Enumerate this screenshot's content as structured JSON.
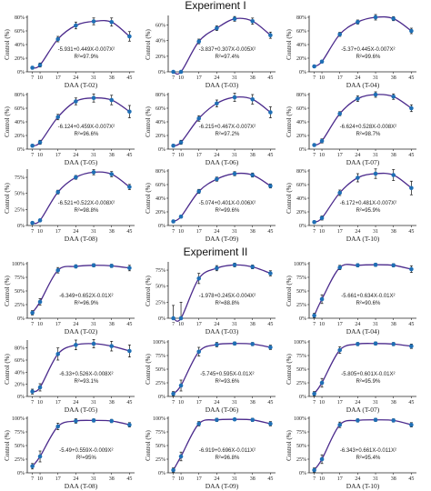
{
  "colors": {
    "fit_line": "#4b2a8c",
    "marker": "#1f6fb5",
    "error_bar": "#111111"
  },
  "experiments": [
    {
      "title": "Experiment I",
      "panels": [
        {
          "xlabel": "DAA (T-02)",
          "equation": "-5.931+0.449X-0.007X²",
          "r2": "R²=97.9%",
          "yticks": [
            "0%",
            "20%",
            "40%",
            "60%",
            "80%"
          ],
          "ylim": [
            0,
            80
          ],
          "x": [
            7,
            10,
            17,
            24,
            31,
            38,
            45
          ],
          "y": [
            6,
            10,
            48,
            68,
            74,
            73,
            52
          ],
          "err": [
            2,
            3,
            4,
            5,
            5,
            6,
            7
          ]
        },
        {
          "xlabel": "DAA (T-03)",
          "equation": "-3.837+0.307X-0.005X²",
          "r2": "R²=97.4%",
          "yticks": [
            "0%",
            "20%",
            "40%",
            "60%"
          ],
          "ylim": [
            0,
            70
          ],
          "x": [
            7,
            10,
            17,
            24,
            31,
            38,
            45
          ],
          "y": [
            0,
            0,
            39,
            56,
            68,
            65,
            47
          ],
          "err": [
            1,
            1,
            3,
            3,
            3,
            4,
            4
          ]
        },
        {
          "xlabel": "DAA (T-04)",
          "equation": "-5.37+0.445X-0.007X²",
          "r2": "R²=99.6%",
          "yticks": [
            "0%",
            "20%",
            "40%",
            "60%",
            "80%"
          ],
          "ylim": [
            0,
            80
          ],
          "x": [
            7,
            10,
            17,
            24,
            31,
            38,
            45
          ],
          "y": [
            8,
            15,
            55,
            73,
            80,
            78,
            60
          ],
          "err": [
            2,
            2,
            3,
            3,
            4,
            3,
            4
          ]
        },
        {
          "xlabel": "DAA (T-05)",
          "equation": "-6.124+0.459X-0.007X²",
          "r2": "R²=96.6%",
          "yticks": [
            "0%",
            "20%",
            "40%",
            "60%",
            "80%"
          ],
          "ylim": [
            0,
            80
          ],
          "x": [
            7,
            10,
            17,
            24,
            31,
            38,
            45
          ],
          "y": [
            5,
            10,
            47,
            70,
            75,
            72,
            55
          ],
          "err": [
            2,
            3,
            4,
            5,
            6,
            7,
            9
          ]
        },
        {
          "xlabel": "DAA (T-06)",
          "equation": "-6.215+0.467X-0.007X²",
          "r2": "R²=97.2%",
          "yticks": [
            "0%",
            "20%",
            "40%",
            "60%",
            "80%"
          ],
          "ylim": [
            0,
            80
          ],
          "x": [
            7,
            10,
            17,
            24,
            31,
            38,
            45
          ],
          "y": [
            5,
            10,
            45,
            67,
            76,
            73,
            54
          ],
          "err": [
            2,
            3,
            4,
            5,
            6,
            7,
            8
          ]
        },
        {
          "xlabel": "DAA (T-07)",
          "equation": "-6.624+0.528X-0.008X²",
          "r2": "R²=98.7%",
          "yticks": [
            "0%",
            "20%",
            "40%",
            "60%",
            "80%"
          ],
          "ylim": [
            0,
            80
          ],
          "x": [
            7,
            10,
            17,
            24,
            31,
            38,
            45
          ],
          "y": [
            6,
            12,
            52,
            74,
            80,
            77,
            60
          ],
          "err": [
            2,
            3,
            3,
            4,
            4,
            4,
            5
          ]
        },
        {
          "xlabel": "DAA (T-08)",
          "equation": "-6.521+0.522X-0.008X²",
          "r2": "R²=98.8%",
          "yticks": [
            "0%",
            "25%",
            "50%",
            "75%"
          ],
          "ylim": [
            0,
            85
          ],
          "x": [
            7,
            10,
            17,
            24,
            31,
            38,
            45
          ],
          "y": [
            4,
            8,
            52,
            75,
            83,
            80,
            60
          ],
          "err": [
            2,
            2,
            3,
            3,
            4,
            4,
            4
          ]
        },
        {
          "xlabel": "DAA (T-09)",
          "equation": "-5.074+0.401X-0.006X²",
          "r2": "R²=99.6%",
          "yticks": [
            "0%",
            "20%",
            "40%",
            "60%",
            "80%"
          ],
          "ylim": [
            0,
            80
          ],
          "x": [
            7,
            10,
            17,
            24,
            31,
            38,
            45
          ],
          "y": [
            6,
            13,
            50,
            68,
            76,
            74,
            58
          ],
          "err": [
            2,
            2,
            3,
            3,
            3,
            3,
            3
          ]
        },
        {
          "xlabel": "DAA (T-10)",
          "equation": "-6.172+0.481X-0.007X²",
          "r2": "R²=95.9%",
          "yticks": [
            "0%",
            "20%",
            "40%",
            "60%",
            "80%"
          ],
          "ylim": [
            0,
            80
          ],
          "x": [
            7,
            10,
            17,
            24,
            31,
            38,
            45
          ],
          "y": [
            5,
            11,
            48,
            70,
            76,
            74,
            55
          ],
          "err": [
            2,
            3,
            4,
            6,
            7,
            8,
            10
          ]
        }
      ]
    },
    {
      "title": "Experiment II",
      "panels": [
        {
          "xlabel": "DAA (T-02)",
          "equation": "-6.349+0.652X-0.01X²",
          "r2": "R²=96.9%",
          "yticks": [
            "0%",
            "25%",
            "50%",
            "75%",
            "100%"
          ],
          "ylim": [
            0,
            100
          ],
          "x": [
            7,
            10,
            17,
            24,
            31,
            38,
            45
          ],
          "y": [
            10,
            30,
            88,
            95,
            97,
            96,
            92
          ],
          "err": [
            4,
            6,
            5,
            3,
            3,
            3,
            5
          ]
        },
        {
          "xlabel": "DAA (T-03)",
          "equation": "-1.978+0.245X-0.004X²",
          "r2": "R²=88.8%",
          "yticks": [
            "0%",
            "25%",
            "50%",
            "75%"
          ],
          "ylim": [
            0,
            85
          ],
          "x": [
            7,
            10,
            17,
            24,
            31,
            38,
            45
          ],
          "y": [
            0,
            0,
            62,
            78,
            83,
            80,
            70
          ],
          "err": [
            20,
            25,
            8,
            4,
            3,
            3,
            4
          ]
        },
        {
          "xlabel": "DAA (T-04)",
          "equation": "-5.661+0.634X-0.01X²",
          "r2": "R²=90.6%",
          "yticks": [
            "0%",
            "25%",
            "50%",
            "75%",
            "100%"
          ],
          "ylim": [
            0,
            100
          ],
          "x": [
            7,
            10,
            17,
            24,
            31,
            38,
            45
          ],
          "y": [
            5,
            35,
            93,
            97,
            98,
            97,
            90
          ],
          "err": [
            4,
            8,
            4,
            3,
            3,
            3,
            6
          ]
        },
        {
          "xlabel": "DAA (T-05)",
          "equation": "-6.33+0.526X-0.008X²",
          "r2": "R²=93.1%",
          "yticks": [
            "0%",
            "20%",
            "40%",
            "60%",
            "80%"
          ],
          "ylim": [
            0,
            90
          ],
          "x": [
            7,
            10,
            17,
            24,
            31,
            38,
            45
          ],
          "y": [
            8,
            15,
            70,
            85,
            87,
            83,
            75
          ],
          "err": [
            4,
            6,
            10,
            8,
            7,
            8,
            10
          ]
        },
        {
          "xlabel": "DAA (T-06)",
          "equation": "-5.745+0.595X-0.01X²",
          "r2": "R²=93.6%",
          "yticks": [
            "0%",
            "25%",
            "50%",
            "75%",
            "100%"
          ],
          "ylim": [
            0,
            100
          ],
          "x": [
            7,
            10,
            17,
            24,
            31,
            38,
            45
          ],
          "y": [
            5,
            20,
            82,
            95,
            97,
            96,
            90
          ],
          "err": [
            4,
            10,
            8,
            4,
            3,
            3,
            4
          ]
        },
        {
          "xlabel": "DAA (T-07)",
          "equation": "-5.805+0.601X-0.01X²",
          "r2": "R²=95.9%",
          "yticks": [
            "0%",
            "25%",
            "50%",
            "75%",
            "100%"
          ],
          "ylim": [
            0,
            100
          ],
          "x": [
            7,
            10,
            17,
            24,
            31,
            38,
            45
          ],
          "y": [
            5,
            25,
            85,
            96,
            97,
            96,
            92
          ],
          "err": [
            4,
            8,
            6,
            3,
            3,
            3,
            4
          ]
        },
        {
          "xlabel": "DAA (T-08)",
          "equation": "-5.49+0.559X-0.009X²",
          "r2": "R²=95%",
          "yticks": [
            "0%",
            "25%",
            "50%",
            "75%",
            "100%"
          ],
          "ylim": [
            0,
            100
          ],
          "x": [
            7,
            10,
            17,
            24,
            31,
            38,
            45
          ],
          "y": [
            12,
            30,
            85,
            95,
            96,
            95,
            88
          ],
          "err": [
            5,
            10,
            6,
            4,
            3,
            3,
            4
          ]
        },
        {
          "xlabel": "DAA (T-09)",
          "equation": "-6.919+0.696X-0.011X²",
          "r2": "R²=96.8%",
          "yticks": [
            "0%",
            "25%",
            "50%",
            "75%",
            "100%"
          ],
          "ylim": [
            0,
            100
          ],
          "x": [
            7,
            10,
            17,
            24,
            31,
            38,
            45
          ],
          "y": [
            5,
            30,
            90,
            97,
            98,
            97,
            90
          ],
          "err": [
            4,
            8,
            4,
            3,
            2,
            3,
            4
          ]
        },
        {
          "xlabel": "DAA (T-10)",
          "equation": "-6.343+0.661X-0.011X²",
          "r2": "R²=95.4%",
          "yticks": [
            "0%",
            "25%",
            "50%",
            "75%",
            "100%"
          ],
          "ylim": [
            0,
            100
          ],
          "x": [
            7,
            10,
            17,
            24,
            31,
            38,
            45
          ],
          "y": [
            5,
            25,
            88,
            96,
            97,
            96,
            88
          ],
          "err": [
            4,
            8,
            5,
            3,
            3,
            3,
            4
          ]
        }
      ]
    }
  ],
  "ylabel": "Control (%)",
  "xticks": [
    "7",
    "10",
    "17",
    "24",
    "31",
    "38",
    "45"
  ],
  "chart_data": [
    {
      "type": "scatter",
      "group": "Experiment I",
      "xlabel": "DAA (T-02)",
      "ylabel": "Control (%)",
      "x": [
        7,
        10,
        17,
        24,
        31,
        38,
        45
      ],
      "y": [
        6,
        10,
        48,
        68,
        74,
        73,
        52
      ]
    },
    {
      "type": "scatter",
      "group": "Experiment I",
      "xlabel": "DAA (T-03)",
      "ylabel": "Control (%)",
      "x": [
        7,
        10,
        17,
        24,
        31,
        38,
        45
      ],
      "y": [
        0,
        0,
        39,
        56,
        68,
        65,
        47
      ]
    },
    {
      "type": "scatter",
      "group": "Experiment I",
      "xlabel": "DAA (T-04)",
      "ylabel": "Control (%)",
      "x": [
        7,
        10,
        17,
        24,
        31,
        38,
        45
      ],
      "y": [
        8,
        15,
        55,
        73,
        80,
        78,
        60
      ]
    },
    {
      "type": "scatter",
      "group": "Experiment I",
      "xlabel": "DAA (T-05)",
      "ylabel": "Control (%)",
      "x": [
        7,
        10,
        17,
        24,
        31,
        38,
        45
      ],
      "y": [
        5,
        10,
        47,
        70,
        75,
        72,
        55
      ]
    },
    {
      "type": "scatter",
      "group": "Experiment I",
      "xlabel": "DAA (T-06)",
      "ylabel": "Control (%)",
      "x": [
        7,
        10,
        17,
        24,
        31,
        38,
        45
      ],
      "y": [
        5,
        10,
        45,
        67,
        76,
        73,
        54
      ]
    },
    {
      "type": "scatter",
      "group": "Experiment I",
      "xlabel": "DAA (T-07)",
      "ylabel": "Control (%)",
      "x": [
        7,
        10,
        17,
        24,
        31,
        38,
        45
      ],
      "y": [
        6,
        12,
        52,
        74,
        80,
        77,
        60
      ]
    },
    {
      "type": "scatter",
      "group": "Experiment I",
      "xlabel": "DAA (T-08)",
      "ylabel": "Control (%)",
      "x": [
        7,
        10,
        17,
        24,
        31,
        38,
        45
      ],
      "y": [
        4,
        8,
        52,
        75,
        83,
        80,
        60
      ]
    },
    {
      "type": "scatter",
      "group": "Experiment I",
      "xlabel": "DAA (T-09)",
      "ylabel": "Control (%)",
      "x": [
        7,
        10,
        17,
        24,
        31,
        38,
        45
      ],
      "y": [
        6,
        13,
        50,
        68,
        76,
        74,
        58
      ]
    },
    {
      "type": "scatter",
      "group": "Experiment I",
      "xlabel": "DAA (T-10)",
      "ylabel": "Control (%)",
      "x": [
        7,
        10,
        17,
        24,
        31,
        38,
        45
      ],
      "y": [
        5,
        11,
        48,
        70,
        76,
        74,
        55
      ]
    },
    {
      "type": "scatter",
      "group": "Experiment II",
      "xlabel": "DAA (T-02)",
      "ylabel": "Control (%)",
      "x": [
        7,
        10,
        17,
        24,
        31,
        38,
        45
      ],
      "y": [
        10,
        30,
        88,
        95,
        97,
        96,
        92
      ]
    },
    {
      "type": "scatter",
      "group": "Experiment II",
      "xlabel": "DAA (T-03)",
      "ylabel": "Control (%)",
      "x": [
        7,
        10,
        17,
        24,
        31,
        38,
        45
      ],
      "y": [
        0,
        0,
        62,
        78,
        83,
        80,
        70
      ]
    },
    {
      "type": "scatter",
      "group": "Experiment II",
      "xlabel": "DAA (T-04)",
      "ylabel": "Control (%)",
      "x": [
        7,
        10,
        17,
        24,
        31,
        38,
        45
      ],
      "y": [
        5,
        35,
        93,
        97,
        98,
        97,
        90
      ]
    },
    {
      "type": "scatter",
      "group": "Experiment II",
      "xlabel": "DAA (T-05)",
      "ylabel": "Control (%)",
      "x": [
        7,
        10,
        17,
        24,
        31,
        38,
        45
      ],
      "y": [
        8,
        15,
        70,
        85,
        87,
        83,
        75
      ]
    },
    {
      "type": "scatter",
      "group": "Experiment II",
      "xlabel": "DAA (T-06)",
      "ylabel": "Control (%)",
      "x": [
        7,
        10,
        17,
        24,
        31,
        38,
        45
      ],
      "y": [
        5,
        20,
        82,
        95,
        97,
        96,
        90
      ]
    },
    {
      "type": "scatter",
      "group": "Experiment II",
      "xlabel": "DAA (T-07)",
      "ylabel": "Control (%)",
      "x": [
        7,
        10,
        17,
        24,
        31,
        38,
        45
      ],
      "y": [
        5,
        25,
        85,
        96,
        97,
        96,
        92
      ]
    },
    {
      "type": "scatter",
      "group": "Experiment II",
      "xlabel": "DAA (T-08)",
      "ylabel": "Control (%)",
      "x": [
        7,
        10,
        17,
        24,
        31,
        38,
        45
      ],
      "y": [
        12,
        30,
        85,
        95,
        96,
        95,
        88
      ]
    },
    {
      "type": "scatter",
      "group": "Experiment II",
      "xlabel": "DAA (T-09)",
      "ylabel": "Control (%)",
      "x": [
        7,
        10,
        17,
        24,
        31,
        38,
        45
      ],
      "y": [
        5,
        30,
        90,
        97,
        98,
        97,
        90
      ]
    },
    {
      "type": "scatter",
      "group": "Experiment II",
      "xlabel": "DAA (T-10)",
      "ylabel": "Control (%)",
      "x": [
        7,
        10,
        17,
        24,
        31,
        38,
        45
      ],
      "y": [
        5,
        25,
        88,
        96,
        97,
        96,
        88
      ]
    }
  ]
}
